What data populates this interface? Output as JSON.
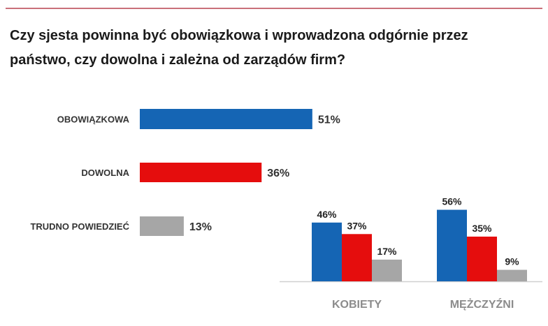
{
  "title": "Czy sjesta powinna być obowiązkowa i wprowadzona odgórnie przez państwo, czy dowolna i zależna od zarządów firm?",
  "colors": {
    "obowiazkowa": "#1565b4",
    "dowolna": "#e50d0d",
    "trudno": "#a6a6a6",
    "accent_line": "#c9707a",
    "category_label": "#8c8c8c"
  },
  "chart_data": [
    {
      "type": "bar",
      "orientation": "horizontal",
      "categories": [
        "OBOWIĄZKOWA",
        "DOWOLNA",
        "TRUDNO POWIEDZIEĆ"
      ],
      "values": [
        51,
        36,
        13
      ],
      "labels": [
        "51%",
        "36%",
        "13%"
      ],
      "colors": [
        "#1565b4",
        "#e50d0d",
        "#a6a6a6"
      ],
      "unit": "%"
    },
    {
      "type": "bar",
      "orientation": "vertical",
      "categories": [
        "KOBIETY",
        "MĘŻCZYŹNI"
      ],
      "series": [
        {
          "values": [
            46,
            56
          ],
          "labels": [
            "46%",
            "56%"
          ],
          "color": "#1565b4"
        },
        {
          "values": [
            37,
            35
          ],
          "labels": [
            "37%",
            "35%"
          ],
          "color": "#e50d0d"
        },
        {
          "values": [
            17,
            9
          ],
          "labels": [
            "17%",
            "9%"
          ],
          "color": "#a6a6a6"
        }
      ],
      "unit": "%"
    }
  ]
}
